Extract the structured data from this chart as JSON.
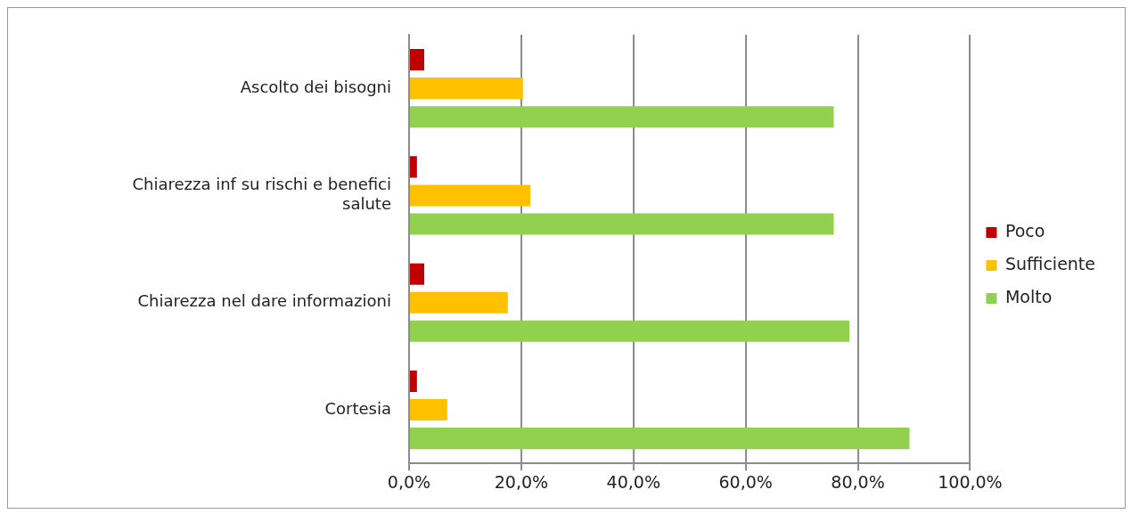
{
  "chart_data": {
    "type": "bar",
    "orientation": "horizontal",
    "categories": [
      "Ascolto dei bisogni",
      "Chiarezza inf su rischi e benefici salute",
      "Chiarezza nel dare informazioni",
      "Cortesia"
    ],
    "series": [
      {
        "name": "Poco",
        "color": "#c00000",
        "values": [
          2.7,
          1.4,
          2.7,
          1.4
        ]
      },
      {
        "name": "Sufficiente",
        "color": "#ffc000",
        "values": [
          20.3,
          21.6,
          17.6,
          6.8
        ]
      },
      {
        "name": "Molto",
        "color": "#92d050",
        "values": [
          75.7,
          75.7,
          78.5,
          89.2
        ]
      }
    ],
    "xlim": [
      0,
      100
    ],
    "xticks": [
      {
        "value": 0,
        "label": "0,0%"
      },
      {
        "value": 20,
        "label": "20,0%"
      },
      {
        "value": 40,
        "label": "40,0%"
      },
      {
        "value": 60,
        "label": "60,0%"
      },
      {
        "value": 80,
        "label": "80,0%"
      },
      {
        "value": 100,
        "label": "100,0%"
      }
    ],
    "grid": "x",
    "legend": "right"
  }
}
